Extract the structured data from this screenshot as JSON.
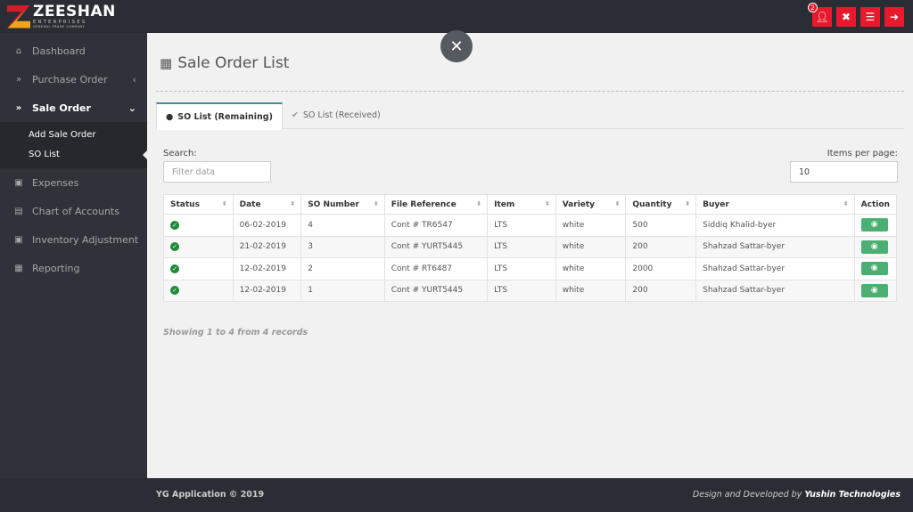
{
  "brand": {
    "name": "ZEESHAN",
    "line1": "ENTERPRISES",
    "line2": "GENERAL TRADE COMPANY"
  },
  "topbar": {
    "notification_count": "2",
    "buttons": [
      "user-icon",
      "expand-icon",
      "menu-icon",
      "logout-icon"
    ],
    "accent": "#e8192c"
  },
  "sidebar": {
    "items": [
      {
        "label": "Dashboard",
        "icon": "home-icon"
      },
      {
        "label": "Purchase Order",
        "icon": "double-chevron-icon"
      },
      {
        "label": "Sale Order",
        "icon": "double-chevron-icon",
        "active": true,
        "children": [
          {
            "label": "Add Sale Order"
          },
          {
            "label": "SO List",
            "current": true
          }
        ]
      },
      {
        "label": "Expenses",
        "icon": "money-icon"
      },
      {
        "label": "Chart of Accounts",
        "icon": "card-icon"
      },
      {
        "label": "Inventory Adjustment",
        "icon": "money-icon"
      },
      {
        "label": "Reporting",
        "icon": "table-icon"
      }
    ]
  },
  "page": {
    "title": "Sale Order List"
  },
  "tabs": [
    {
      "label": "SO List (Remaining)",
      "active": true
    },
    {
      "label": "SO List (Received)"
    }
  ],
  "search": {
    "label": "Search:",
    "placeholder": "Filter data"
  },
  "per_page": {
    "label": "Items per page:",
    "value": "10"
  },
  "table": {
    "columns": [
      "Status",
      "Date",
      "SO Number",
      "File Reference",
      "Item",
      "Variety",
      "Quantity",
      "Buyer",
      "Action"
    ],
    "rows": [
      [
        "06-02-2019",
        "4",
        "Cont # TR6547",
        "LTS",
        "white",
        "500",
        "Siddiq Khalid-byer"
      ],
      [
        "21-02-2019",
        "3",
        "Cont # YURT5445",
        "LTS",
        "white",
        "200",
        "Shahzad Sattar-byer"
      ],
      [
        "12-02-2019",
        "2",
        "Cont # RT6487",
        "LTS",
        "white",
        "2000",
        "Shahzad Sattar-byer"
      ],
      [
        "12-02-2019",
        "1",
        "Cont # YURT5445",
        "LTS",
        "white",
        "200",
        "Shahzad Sattar-byer"
      ]
    ]
  },
  "showing": "Showing 1 to 4 from 4 records",
  "footer": {
    "left": "YG Application © 2019",
    "right_prefix": "Design and Developed by",
    "right_company": "Yushin Technologies"
  }
}
